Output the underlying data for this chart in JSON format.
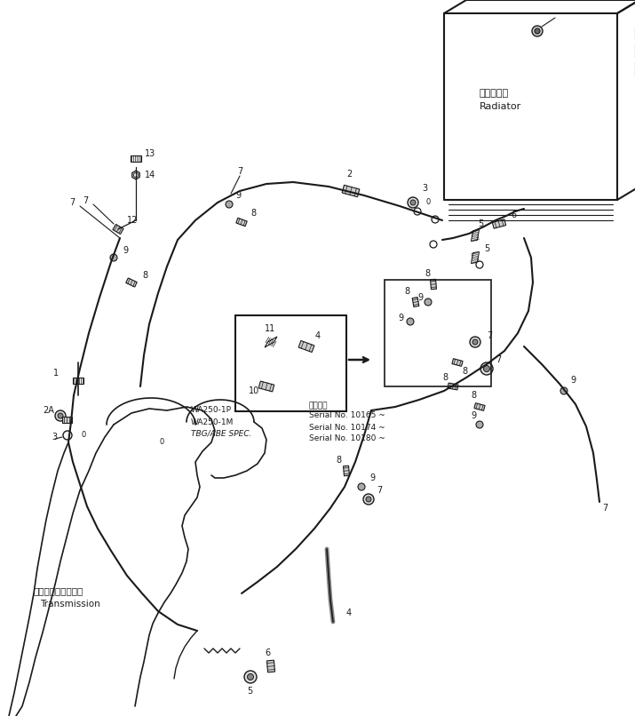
{
  "bg_color": "#ffffff",
  "lc": "#1a1a1a",
  "tc": "#1a1a1a",
  "fig_width": 7.15,
  "fig_height": 8.06,
  "radiator_label_jp": "ラジエータ",
  "radiator_label_en": "Radiator",
  "transmission_label_jp": "トランスミッション",
  "transmission_label_en": "Transmission",
  "spec_lines": [
    "WA250-1P",
    "WA250-1M",
    "TBG/ABE SPEC."
  ],
  "serial_label": "適用号等",
  "serial_lines": [
    "Serial No. 10165 ~",
    "Serial No. 10174 ~",
    "Serial No. 10180 ~"
  ]
}
